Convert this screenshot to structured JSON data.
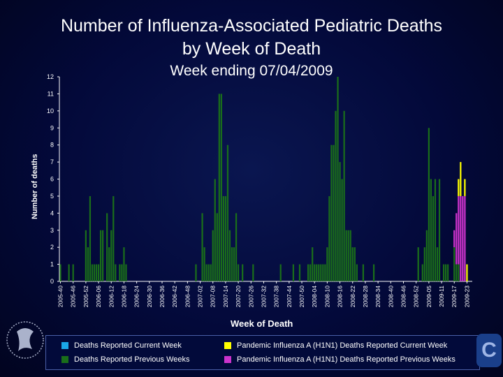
{
  "title_line1": "Number of Influenza-Associated Pediatric Deaths",
  "title_line2": "by Week of Death",
  "subtitle": "Week ending 07/04/2009",
  "legend": [
    {
      "label": "Deaths Reported Current Week",
      "color": "#1aa7e8"
    },
    {
      "label": "Pandemic Influenza A (H1N1) Deaths Reported Current Week",
      "color": "#ffff00"
    },
    {
      "label": "Deaths Reported Previous Weeks",
      "color": "#1a6e1a"
    },
    {
      "label": "Pandemic Influenza A (H1N1) Deaths Reported Previous Weeks",
      "color": "#cc33cc"
    }
  ],
  "chart_data": {
    "type": "bar",
    "xlabel": "Week of Death",
    "ylabel": "Number of deaths",
    "ylim": [
      0,
      12
    ],
    "yticks": [
      0,
      1,
      2,
      3,
      4,
      5,
      6,
      7,
      8,
      9,
      10,
      11,
      12
    ],
    "xtick_labels": [
      "2005-40",
      "2005-46",
      "2005-52",
      "2006-06",
      "2006-12",
      "2006-18",
      "2006-24",
      "2006-30",
      "2006-36",
      "2006-42",
      "2006-48",
      "2007-02",
      "2007-08",
      "2007-14",
      "2007-20",
      "2007-26",
      "2007-32",
      "2007-38",
      "2007-44",
      "2007-50",
      "2008-04",
      "2008-10",
      "2008-16",
      "2008-22",
      "2008-28",
      "2008-34",
      "2008-40",
      "2008-46",
      "2008-52",
      "2009-05",
      "2009-11",
      "2009-17",
      "2009-23"
    ],
    "series": [
      {
        "name": "Deaths Reported Previous Weeks",
        "color": "#1a6e1a",
        "values": [
          1,
          0,
          0,
          0,
          1,
          0,
          1,
          0,
          0,
          0,
          0,
          0,
          3,
          2,
          5,
          1,
          1,
          1,
          1,
          3,
          3,
          0,
          4,
          2,
          3,
          5,
          1,
          0,
          1,
          1,
          2,
          1,
          0,
          0,
          0,
          0,
          0,
          0,
          0,
          0,
          0,
          0,
          0,
          0,
          0,
          0,
          0,
          0,
          0,
          0,
          0,
          0,
          0,
          0,
          0,
          0,
          0,
          0,
          0,
          0,
          0,
          0,
          0,
          0,
          1,
          0,
          0,
          4,
          2,
          1,
          1,
          1,
          3,
          6,
          4,
          11,
          11,
          5,
          5,
          8,
          3,
          2,
          2,
          4,
          1,
          0,
          1,
          0,
          0,
          0,
          0,
          1,
          0,
          0,
          0,
          0,
          0,
          0,
          0,
          0,
          0,
          0,
          0,
          0,
          1,
          0,
          0,
          0,
          0,
          0,
          1,
          0,
          0,
          1,
          0,
          0,
          0,
          1,
          1,
          2,
          1,
          1,
          1,
          1,
          1,
          1,
          2,
          5,
          8,
          8,
          10,
          12,
          7,
          6,
          10,
          3,
          3,
          3,
          2,
          2,
          1,
          0,
          0,
          1,
          0,
          0,
          0,
          0,
          1,
          0,
          0,
          0,
          0,
          0,
          0,
          0,
          0,
          0,
          0,
          0,
          0,
          0,
          0,
          0,
          0,
          0,
          0,
          0,
          0,
          2,
          0,
          1,
          2,
          3,
          9,
          6,
          5,
          6,
          2,
          6,
          0,
          1,
          1,
          1,
          0,
          0,
          2,
          1,
          1,
          0,
          0,
          0,
          0,
          0,
          0
        ]
      },
      {
        "name": "Pandemic Influenza A (H1N1) Deaths Reported Previous Weeks",
        "color": "#cc33cc",
        "values": [
          0,
          0,
          0,
          0,
          0,
          0,
          0,
          0,
          0,
          0,
          0,
          0,
          0,
          0,
          0,
          0,
          0,
          0,
          0,
          0,
          0,
          0,
          0,
          0,
          0,
          0,
          0,
          0,
          0,
          0,
          0,
          0,
          0,
          0,
          0,
          0,
          0,
          0,
          0,
          0,
          0,
          0,
          0,
          0,
          0,
          0,
          0,
          0,
          0,
          0,
          0,
          0,
          0,
          0,
          0,
          0,
          0,
          0,
          0,
          0,
          0,
          0,
          0,
          0,
          0,
          0,
          0,
          0,
          0,
          0,
          0,
          0,
          0,
          0,
          0,
          0,
          0,
          0,
          0,
          0,
          0,
          0,
          0,
          0,
          0,
          0,
          0,
          0,
          0,
          0,
          0,
          0,
          0,
          0,
          0,
          0,
          0,
          0,
          0,
          0,
          0,
          0,
          0,
          0,
          0,
          0,
          0,
          0,
          0,
          0,
          0,
          0,
          0,
          0,
          0,
          0,
          0,
          0,
          0,
          0,
          0,
          0,
          0,
          0,
          0,
          0,
          0,
          0,
          0,
          0,
          0,
          0,
          0,
          0,
          0,
          0,
          0,
          0,
          0,
          0,
          0,
          0,
          0,
          0,
          0,
          0,
          0,
          0,
          0,
          0,
          0,
          0,
          0,
          0,
          0,
          0,
          0,
          0,
          0,
          0,
          0,
          0,
          0,
          0,
          0,
          0,
          0,
          0,
          0,
          0,
          0,
          0,
          0,
          0,
          0,
          0,
          0,
          0,
          0,
          0,
          0,
          0,
          0,
          0,
          0,
          0,
          1,
          3,
          4,
          5,
          5,
          5,
          0,
          0,
          0
        ]
      },
      {
        "name": "Pandemic Influenza A (H1N1) Deaths Reported Current Week",
        "color": "#ffff00",
        "values": [
          0,
          0,
          0,
          0,
          0,
          0,
          0,
          0,
          0,
          0,
          0,
          0,
          0,
          0,
          0,
          0,
          0,
          0,
          0,
          0,
          0,
          0,
          0,
          0,
          0,
          0,
          0,
          0,
          0,
          0,
          0,
          0,
          0,
          0,
          0,
          0,
          0,
          0,
          0,
          0,
          0,
          0,
          0,
          0,
          0,
          0,
          0,
          0,
          0,
          0,
          0,
          0,
          0,
          0,
          0,
          0,
          0,
          0,
          0,
          0,
          0,
          0,
          0,
          0,
          0,
          0,
          0,
          0,
          0,
          0,
          0,
          0,
          0,
          0,
          0,
          0,
          0,
          0,
          0,
          0,
          0,
          0,
          0,
          0,
          0,
          0,
          0,
          0,
          0,
          0,
          0,
          0,
          0,
          0,
          0,
          0,
          0,
          0,
          0,
          0,
          0,
          0,
          0,
          0,
          0,
          0,
          0,
          0,
          0,
          0,
          0,
          0,
          0,
          0,
          0,
          0,
          0,
          0,
          0,
          0,
          0,
          0,
          0,
          0,
          0,
          0,
          0,
          0,
          0,
          0,
          0,
          0,
          0,
          0,
          0,
          0,
          0,
          0,
          0,
          0,
          0,
          0,
          0,
          0,
          0,
          0,
          0,
          0,
          0,
          0,
          0,
          0,
          0,
          0,
          0,
          0,
          0,
          0,
          0,
          0,
          0,
          0,
          0,
          0,
          0,
          0,
          0,
          0,
          0,
          0,
          0,
          0,
          0,
          0,
          0,
          0,
          0,
          0,
          0,
          0,
          0,
          0,
          0,
          0,
          0,
          0,
          0,
          0,
          1,
          2,
          0,
          1,
          1,
          0,
          0
        ]
      }
    ]
  },
  "icons": {
    "hhs_logo": "hhs-seal-icon",
    "cdc_logo": "cdc-logo-icon"
  }
}
